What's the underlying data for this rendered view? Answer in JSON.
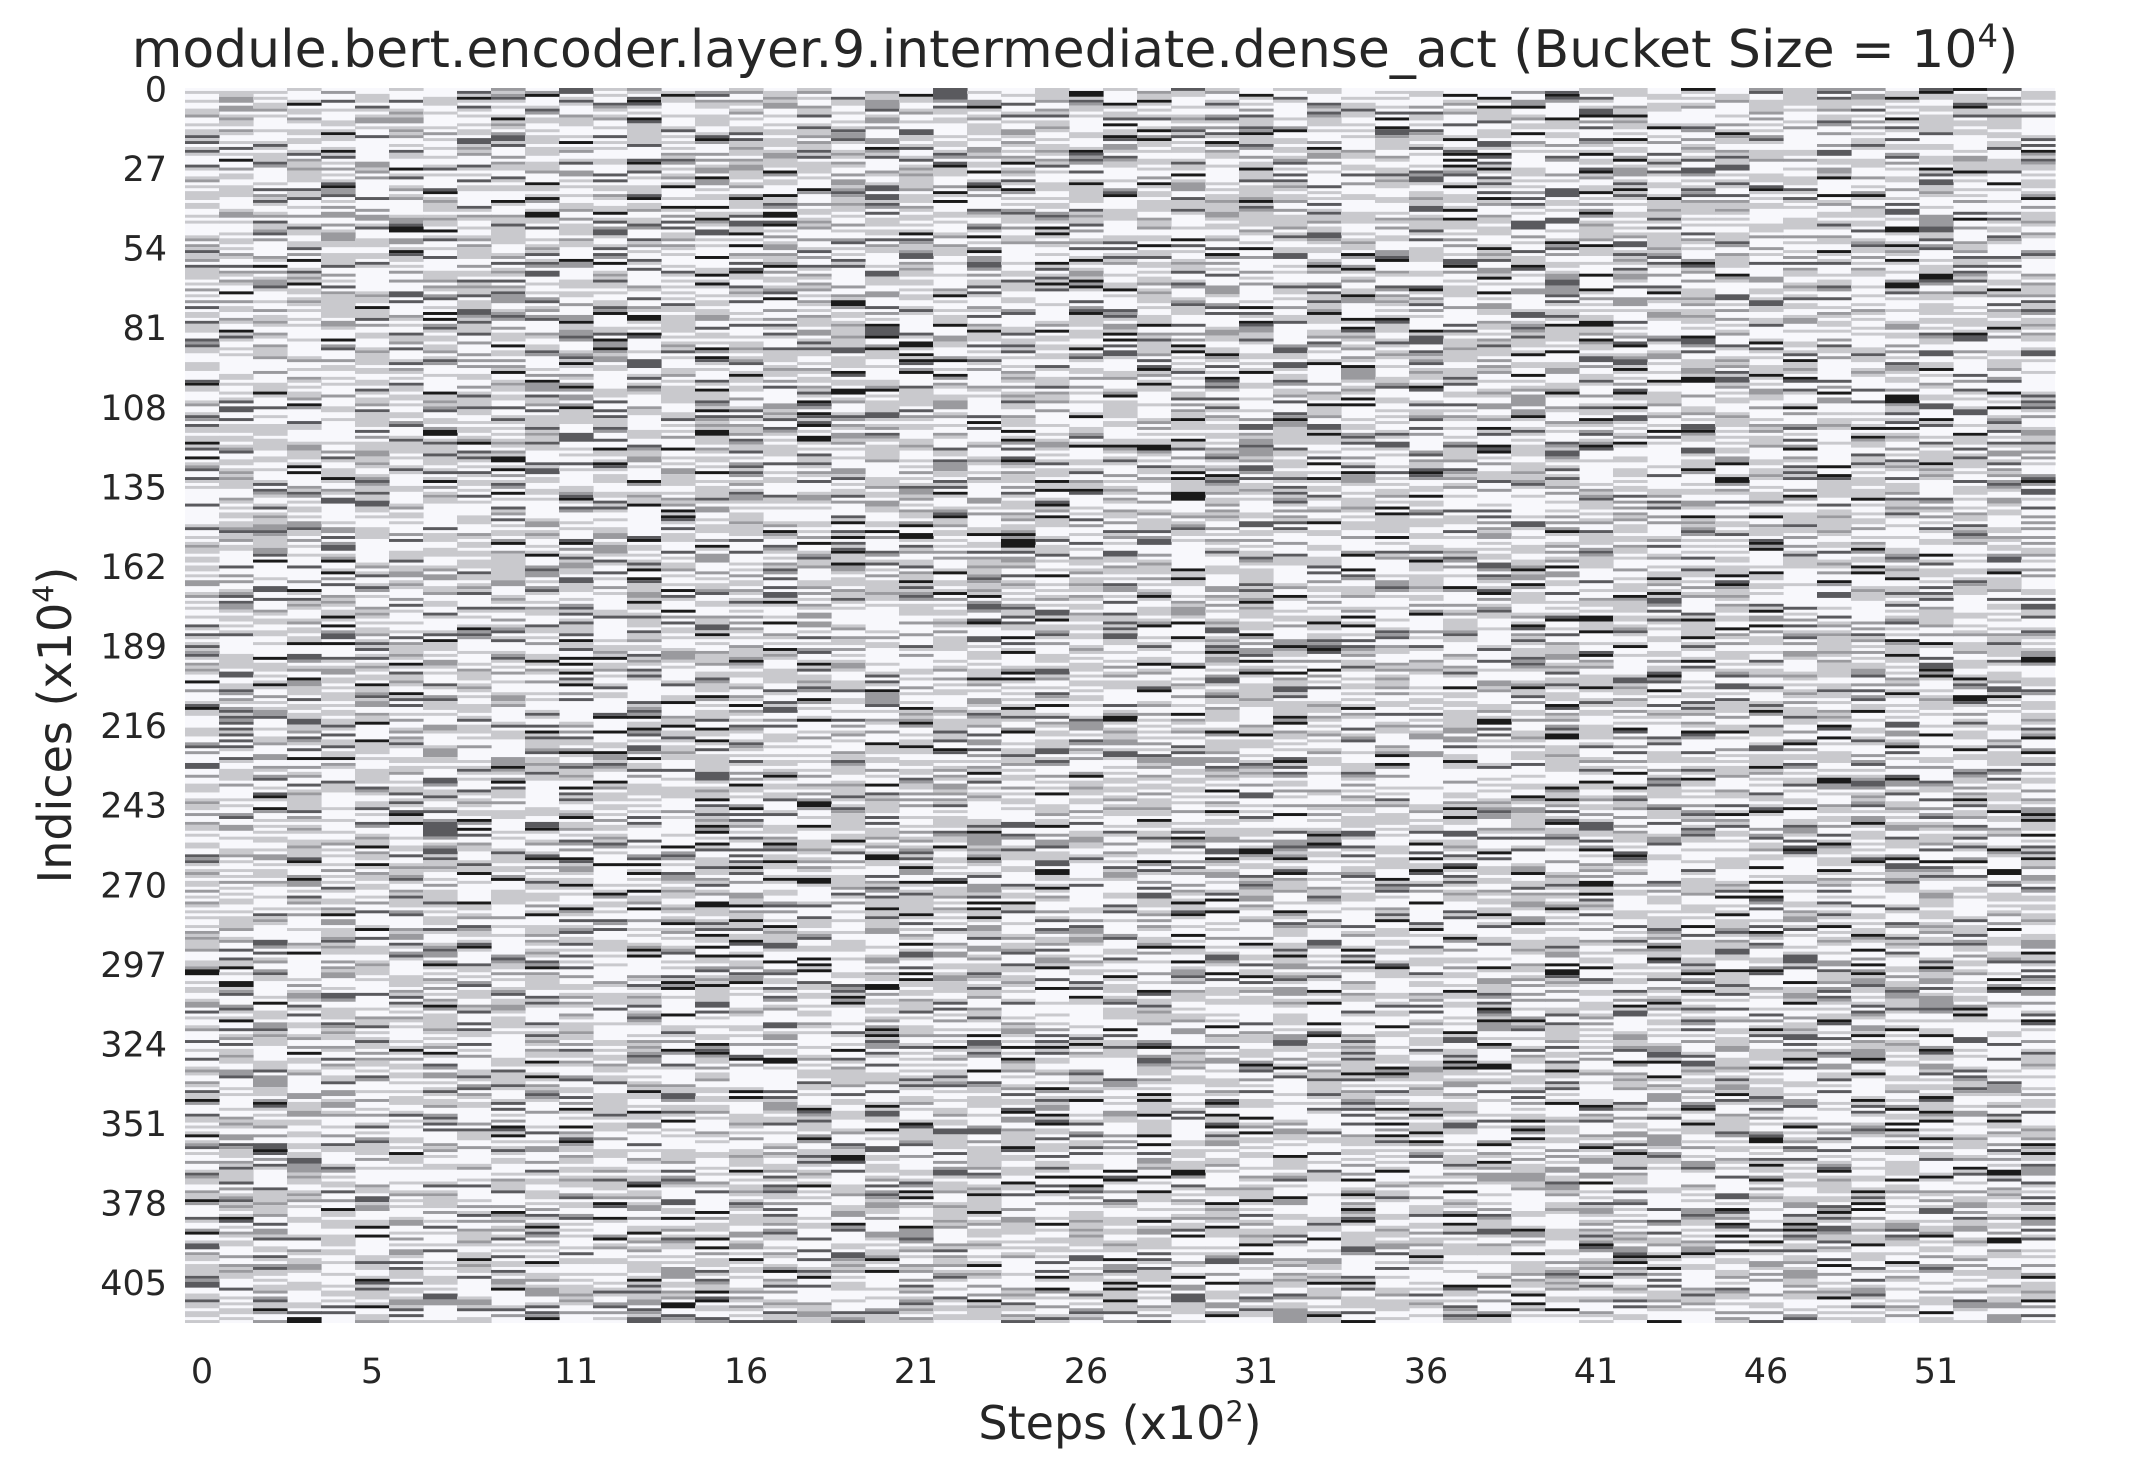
{
  "chart_data": {
    "type": "heatmap",
    "title_main": "module.bert.encoder.layer.9.intermediate.dense_act (Bucket Size = 10",
    "title_sup": "4",
    "title_end": ")",
    "xlabel_main": "Steps (x10",
    "xlabel_sup": "2",
    "xlabel_end": ")",
    "ylabel_main": "Indices (x10",
    "ylabel_sup": "4",
    "ylabel_end": ")",
    "x_tick_labels": [
      "0",
      "5",
      "11",
      "16",
      "21",
      "26",
      "31",
      "36",
      "41",
      "46",
      "51"
    ],
    "y_tick_labels": [
      "0",
      "27",
      "54",
      "81",
      "108",
      "135",
      "162",
      "189",
      "216",
      "243",
      "270",
      "297",
      "324",
      "351",
      "378",
      "405"
    ],
    "n_steps": 55,
    "n_indices": 419,
    "xlim": [
      0,
      55
    ],
    "ylim": [
      0,
      419
    ],
    "y_inverted": true,
    "grid": false,
    "colorbar": false,
    "colormap": [
      "#f8f8fc",
      "#c9c9cd",
      "#9a9a9e",
      "#5a5a5e",
      "#1a1a1a"
    ],
    "cell_value_distribution": [
      0.4,
      0.33,
      0.13,
      0.09,
      0.05
    ],
    "note_values": "Per-cell intensity levels (0-4) are dense random-looking bucket counts; values are generated from the distribution above, darker = higher."
  }
}
